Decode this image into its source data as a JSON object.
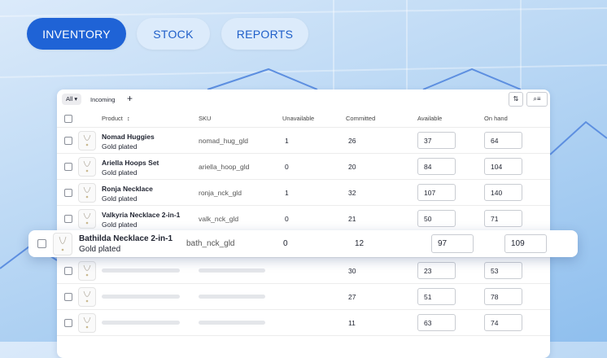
{
  "tabs": [
    "INVENTORY",
    "STOCK",
    "REPORTS"
  ],
  "toolbar": {
    "filter": "All",
    "tab": "Incoming",
    "add": "+"
  },
  "columns": [
    "Product",
    "SKU",
    "Unavailable",
    "Committed",
    "Available",
    "On hand"
  ],
  "rows": [
    {
      "product": "Nomad Huggies",
      "variant": "Gold plated",
      "sku": "nomad_hug_gld",
      "unavailable": 1,
      "committed": 26,
      "available": 37,
      "on_hand": 64
    },
    {
      "product": "Ariella Hoops Set",
      "variant": "Gold plated",
      "sku": "ariella_hoop_gld",
      "unavailable": 0,
      "committed": 20,
      "available": 84,
      "on_hand": 104
    },
    {
      "product": "Ronja Necklace",
      "variant": "Gold plated",
      "sku": "ronja_nck_gld",
      "unavailable": 1,
      "committed": 32,
      "available": 107,
      "on_hand": 140
    },
    {
      "product": "Valkyria Necklace 2-in-1",
      "variant": "Gold plated",
      "sku": "valk_nck_gld",
      "unavailable": 0,
      "committed": 21,
      "available": 50,
      "on_hand": 71
    }
  ],
  "highlighted_row": {
    "product": "Bathilda Necklace 2-in-1",
    "variant": "Gold plated",
    "sku": "bath_nck_gld",
    "unavailable": 0,
    "committed": 12,
    "available": 97,
    "on_hand": 109
  },
  "placeholder_rows": [
    {
      "committed": 30,
      "available": 23,
      "on_hand": 53
    },
    {
      "committed": 27,
      "available": 51,
      "on_hand": 78
    },
    {
      "committed": 11,
      "available": 63,
      "on_hand": 74
    }
  ]
}
